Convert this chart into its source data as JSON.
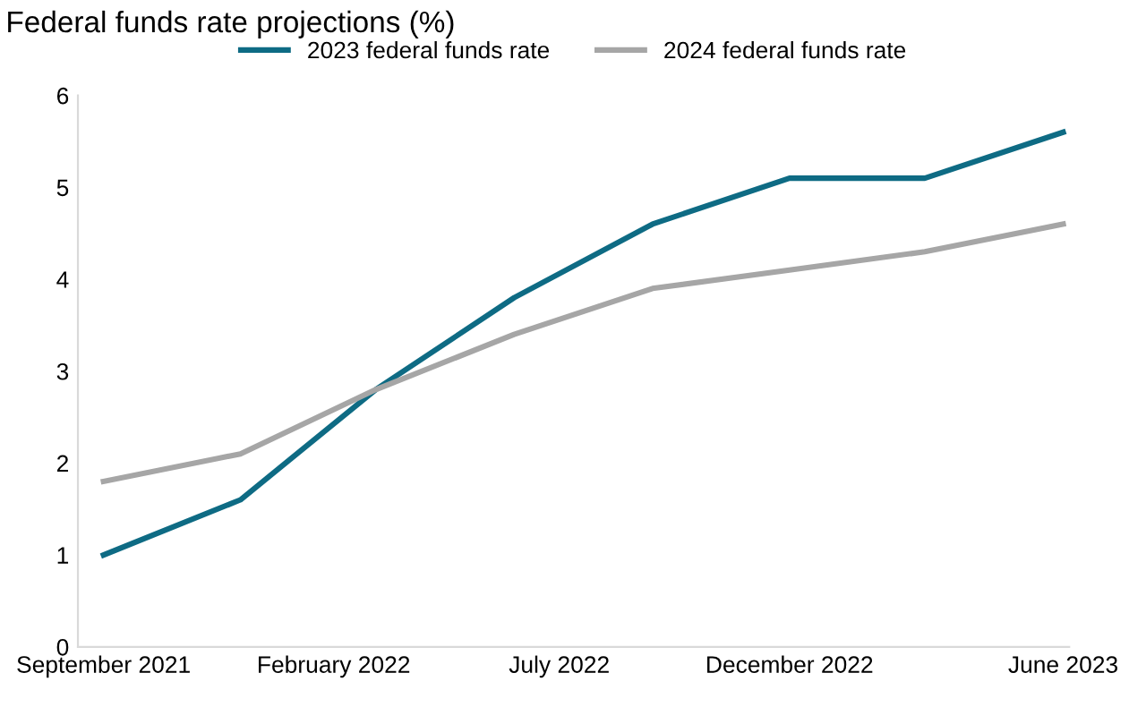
{
  "chart_data": {
    "type": "line",
    "title": "Federal funds rate projections (%)",
    "x": [
      "2021-09-01",
      "2021-12-01",
      "2022-03-01",
      "2022-06-01",
      "2022-09-01",
      "2022-12-01",
      "2023-03-01",
      "2023-06-01"
    ],
    "series": [
      {
        "name": "2023 federal funds rate",
        "color": "#0e6b84",
        "values": [
          1.0,
          1.6,
          2.8,
          3.8,
          4.6,
          5.1,
          5.1,
          5.6
        ]
      },
      {
        "name": "2024 federal funds rate",
        "color": "#a6a6a6",
        "values": [
          1.8,
          2.1,
          2.8,
          3.4,
          3.9,
          4.1,
          4.3,
          4.6
        ]
      }
    ],
    "xlim": [
      "2021-08-15",
      "2023-06-05"
    ],
    "xticks": [
      {
        "value": "2021-09-01",
        "label": "September 2021"
      },
      {
        "value": "2022-02-01",
        "label": "February 2022"
      },
      {
        "value": "2022-07-01",
        "label": "July 2022"
      },
      {
        "value": "2022-12-01",
        "label": "December 2022"
      },
      {
        "value": "2023-06-01",
        "label": "June 2023"
      }
    ],
    "ylim": [
      0,
      6
    ],
    "yticks": [
      0,
      1,
      2,
      3,
      4,
      5,
      6
    ],
    "grid": false,
    "legend": "top",
    "marker": "none",
    "line_style": "solid"
  }
}
